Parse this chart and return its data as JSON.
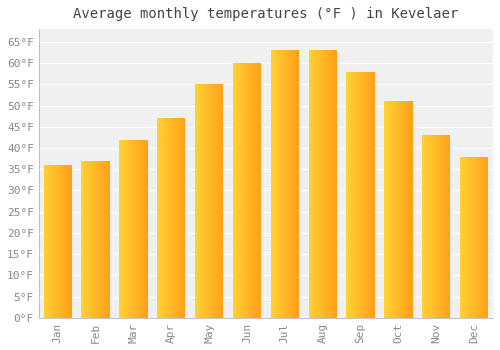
{
  "title": "Average monthly temperatures (°F ) in Kevelaer",
  "months": [
    "Jan",
    "Feb",
    "Mar",
    "Apr",
    "May",
    "Jun",
    "Jul",
    "Aug",
    "Sep",
    "Oct",
    "Nov",
    "Dec"
  ],
  "values": [
    36,
    37,
    42,
    47,
    55,
    60,
    63,
    63,
    58,
    51,
    43,
    38
  ],
  "bar_color_left": "#FFD055",
  "bar_color_right": "#FFA020",
  "ylim": [
    0,
    68
  ],
  "yticks": [
    0,
    5,
    10,
    15,
    20,
    25,
    30,
    35,
    40,
    45,
    50,
    55,
    60,
    65
  ],
  "background_color": "#ffffff",
  "plot_bg_color": "#f0f0f0",
  "grid_color": "#ffffff",
  "title_fontsize": 10,
  "tick_fontsize": 8,
  "label_color": "#888888"
}
